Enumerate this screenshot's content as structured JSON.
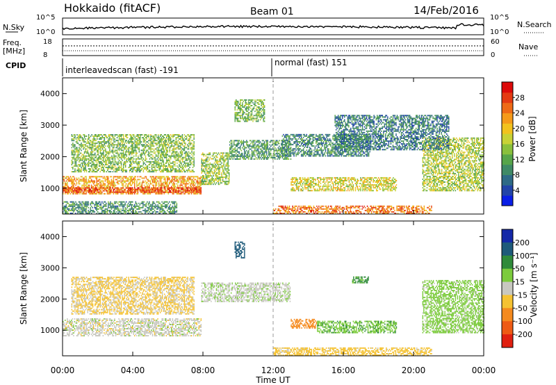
{
  "header": {
    "station": "Hokkaido (fitACF)",
    "beam": "Beam 01",
    "date": "14/Feb/2016"
  },
  "strips": {
    "nsky": {
      "label": "N.Sky",
      "tick_top": "10^5",
      "tick_bottom": "10^0",
      "right_tick_top": "10^5",
      "right_tick_bottom": "10^0",
      "right_label": "N.Search"
    },
    "freq": {
      "label_line1": "Freq.",
      "label_line2": "[MHz]",
      "tick_top": "18",
      "tick_bottom": "8",
      "right_tick_top": "60",
      "right_tick_bottom": "0",
      "right_label": "Nave"
    },
    "cpid": {
      "label": "CPID",
      "mode1": "interleavedscan (fast) -191",
      "mode2": "normal (fast) 151"
    }
  },
  "chart_data": [
    {
      "type": "heatmap",
      "name": "power",
      "ylabel": "Slant Range [km]",
      "xlabel": "",
      "x_ticks": [
        "00:00",
        "04:00",
        "08:00",
        "12:00",
        "16:00",
        "20:00",
        "00:00"
      ],
      "x_range_hours": [
        0,
        24
      ],
      "y_ticks": [
        1000,
        2000,
        3000,
        4000
      ],
      "y_range": [
        180,
        4500
      ],
      "colorbar": {
        "label": "Power [dB]",
        "range": [
          0,
          32
        ],
        "ticks": [
          4,
          8,
          12,
          16,
          20,
          24,
          28
        ],
        "colors": [
          "#0a1ee6",
          "#2244a8",
          "#2e6a86",
          "#3f8a66",
          "#57a54a",
          "#8ac03c",
          "#c8d236",
          "#f2c21e",
          "#f59a1a",
          "#ee6a16",
          "#e43a12",
          "#dc0a0a"
        ]
      },
      "regions": [
        {
          "t0": 0.0,
          "t1": 7.9,
          "r0": 800,
          "r1": 1350,
          "p": 22
        },
        {
          "t0": 0.0,
          "t1": 7.9,
          "r0": 850,
          "r1": 1000,
          "p": 28
        },
        {
          "t0": 0.5,
          "t1": 7.5,
          "r0": 1500,
          "r1": 2700,
          "p": 14
        },
        {
          "t0": 7.9,
          "t1": 9.5,
          "r0": 1100,
          "r1": 2100,
          "p": 15
        },
        {
          "t0": 9.5,
          "t1": 13.0,
          "r0": 1900,
          "r1": 2500,
          "p": 11
        },
        {
          "t0": 12.5,
          "t1": 17.5,
          "r0": 2000,
          "r1": 2700,
          "p": 9
        },
        {
          "t0": 13.0,
          "t1": 19.0,
          "r0": 900,
          "r1": 1350,
          "p": 18
        },
        {
          "t0": 9.8,
          "t1": 11.5,
          "r0": 3100,
          "r1": 3800,
          "p": 13
        },
        {
          "t0": 12.0,
          "t1": 21.0,
          "r0": 180,
          "r1": 420,
          "p": 25
        },
        {
          "t0": 20.5,
          "t1": 24.0,
          "r0": 900,
          "r1": 2600,
          "p": 16
        },
        {
          "t0": 0.0,
          "t1": 6.5,
          "r0": 180,
          "r1": 550,
          "p": 10
        },
        {
          "t0": 15.5,
          "t1": 22.0,
          "r0": 2200,
          "r1": 3300,
          "p": 8
        }
      ]
    },
    {
      "type": "heatmap",
      "name": "velocity",
      "ylabel": "Slant Range [km]",
      "xlabel": "Time UT",
      "x_ticks": [
        "00:00",
        "04:00",
        "08:00",
        "12:00",
        "16:00",
        "20:00",
        "00:00"
      ],
      "x_range_hours": [
        0,
        24
      ],
      "y_ticks": [
        1000,
        2000,
        3000,
        4000
      ],
      "y_range": [
        180,
        4500
      ],
      "colorbar": {
        "label": "Velocity [m s⁻¹]",
        "tick_labels": [
          "200",
          "100",
          "50",
          "15",
          "-15",
          "-50",
          "-100",
          "-200"
        ],
        "colors": [
          "#1428a8",
          "#1e5a7a",
          "#2f8a3a",
          "#7ccb3c",
          "#c8c8c0",
          "#f5c232",
          "#f58a1e",
          "#ee5a14",
          "#e02010"
        ]
      },
      "regions": [
        {
          "t0": 0.0,
          "t1": 7.9,
          "r0": 800,
          "r1": 1350,
          "v": 0
        },
        {
          "t0": 0.5,
          "t1": 7.5,
          "r0": 1500,
          "r1": 2700,
          "v": -20
        },
        {
          "t0": 7.9,
          "t1": 13.0,
          "r0": 1900,
          "r1": 2500,
          "v": 5
        },
        {
          "t0": 13.0,
          "t1": 14.5,
          "r0": 1050,
          "r1": 1350,
          "v": -80
        },
        {
          "t0": 14.5,
          "t1": 19.0,
          "r0": 900,
          "r1": 1300,
          "v": 40
        },
        {
          "t0": 20.5,
          "t1": 24.0,
          "r0": 900,
          "r1": 2600,
          "v": 30
        },
        {
          "t0": 9.8,
          "t1": 10.4,
          "r0": 3300,
          "r1": 3800,
          "v": 180
        },
        {
          "t0": 12.0,
          "t1": 21.0,
          "r0": 180,
          "r1": 420,
          "v": -30
        },
        {
          "t0": 16.5,
          "t1": 17.5,
          "r0": 2500,
          "r1": 2700,
          "v": 60
        }
      ]
    }
  ]
}
